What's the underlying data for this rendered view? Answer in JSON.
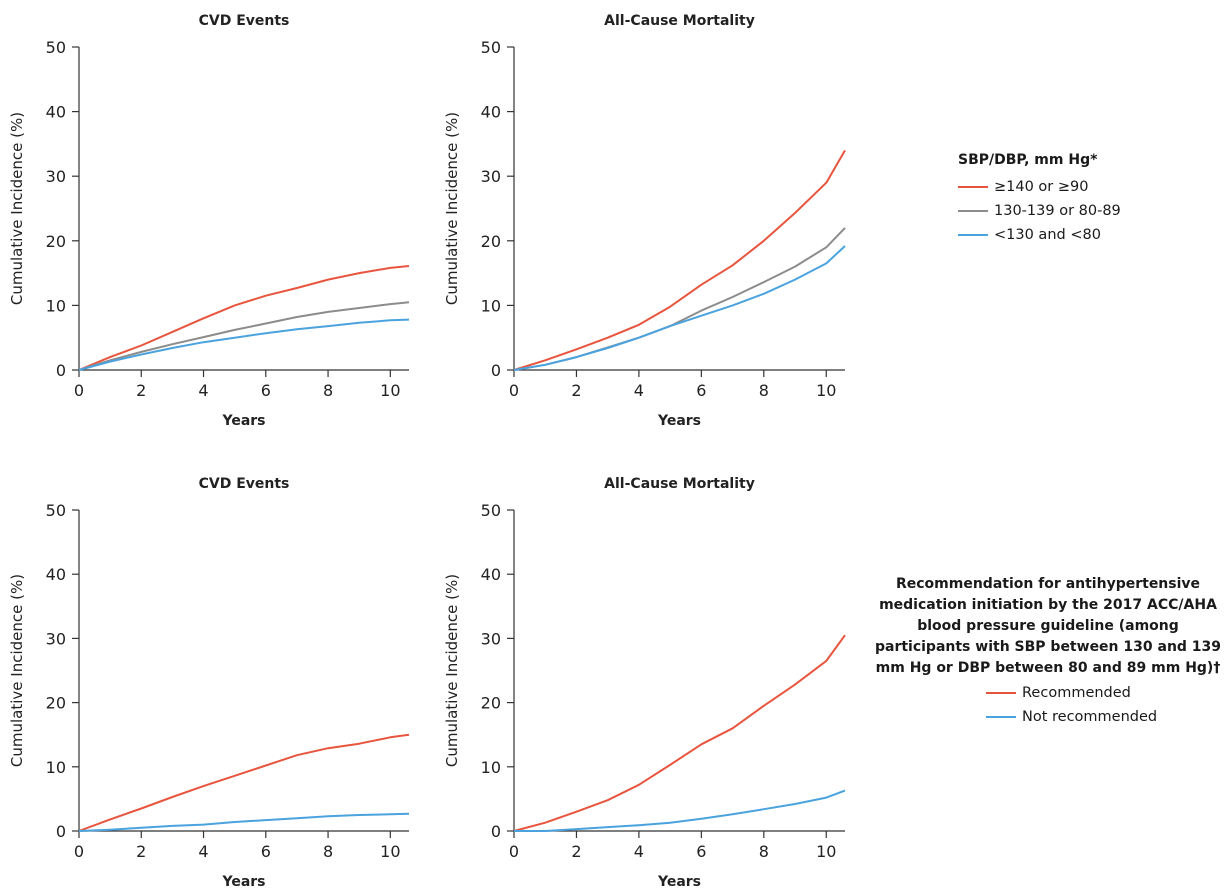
{
  "colors": {
    "red": "#e8553e",
    "gray": "#8c8c8c",
    "blue": "#4aa3df",
    "axis": "#333333"
  },
  "legends": {
    "top": {
      "title": "SBP/DBP, mm Hg*",
      "items": [
        {
          "label": "≥140 or ≥90",
          "color": "#e8553e"
        },
        {
          "label": "130-139 or 80-89",
          "color": "#8c8c8c"
        },
        {
          "label": "<130 and <80",
          "color": "#4aa3df"
        }
      ]
    },
    "bottom": {
      "title": "Recommendation for antihypertensive medication initiation by the 2017 ACC/AHA blood pressure guideline (among participants with SBP between 130 and 139 mm Hg or DBP between 80 and 89 mm Hg)†",
      "items": [
        {
          "label": "Recommended",
          "color": "#e8553e"
        },
        {
          "label": "Not recommended",
          "color": "#4aa3df"
        }
      ]
    }
  },
  "chart_data": [
    {
      "type": "line",
      "title": "CVD Events",
      "xlabel": "Years",
      "ylabel": "Cumulative Incidence (%)",
      "xlim": [
        0,
        10.6
      ],
      "ylim": [
        0,
        50
      ],
      "xticks": [
        0,
        2,
        4,
        6,
        8,
        10
      ],
      "yticks": [
        0,
        10,
        20,
        30,
        40,
        50
      ],
      "series": [
        {
          "name": "≥140 or ≥90",
          "color": "#e8553e",
          "x": [
            0,
            1,
            2,
            3,
            4,
            5,
            6,
            7,
            8,
            9,
            10,
            10.6
          ],
          "y": [
            0,
            2,
            3.8,
            5.9,
            8,
            10,
            11.5,
            12.7,
            14,
            15,
            15.8,
            16.1
          ]
        },
        {
          "name": "130-139 or 80-89",
          "color": "#8c8c8c",
          "x": [
            0,
            1,
            2,
            3,
            4,
            5,
            6,
            7,
            8,
            9,
            10,
            10.6
          ],
          "y": [
            0,
            1.5,
            2.8,
            4,
            5.1,
            6.2,
            7.2,
            8.2,
            9,
            9.6,
            10.2,
            10.5
          ]
        },
        {
          "name": "<130 and <80",
          "color": "#4aa3df",
          "x": [
            0,
            1,
            2,
            3,
            4,
            5,
            6,
            7,
            8,
            9,
            10,
            10.6
          ],
          "y": [
            0,
            1.3,
            2.4,
            3.4,
            4.3,
            5,
            5.7,
            6.3,
            6.8,
            7.3,
            7.7,
            7.8
          ]
        }
      ]
    },
    {
      "type": "line",
      "title": "All-Cause Mortality",
      "xlabel": "Years",
      "ylabel": "Cumulative Incidence (%)",
      "xlim": [
        0,
        10.6
      ],
      "ylim": [
        0,
        50
      ],
      "xticks": [
        0,
        2,
        4,
        6,
        8,
        10
      ],
      "yticks": [
        0,
        10,
        20,
        30,
        40,
        50
      ],
      "series": [
        {
          "name": "≥140 or ≥90",
          "color": "#e8553e",
          "x": [
            0,
            1,
            2,
            3,
            4,
            5,
            6,
            7,
            8,
            9,
            10,
            10.6
          ],
          "y": [
            0,
            1.5,
            3.2,
            5,
            7,
            9.8,
            13.2,
            16.2,
            20,
            24.3,
            29,
            34
          ]
        },
        {
          "name": "130-139 or 80-89",
          "color": "#8c8c8c",
          "x": [
            0,
            1,
            2,
            3,
            4,
            5,
            6,
            7,
            8,
            9,
            10,
            10.6
          ],
          "y": [
            0,
            0.8,
            2,
            3.5,
            5,
            6.8,
            9.2,
            11.3,
            13.6,
            16,
            19,
            22
          ]
        },
        {
          "name": "<130 and <80",
          "color": "#4aa3df",
          "x": [
            0,
            1,
            2,
            3,
            4,
            5,
            6,
            7,
            8,
            9,
            10,
            10.6
          ],
          "y": [
            0,
            0.8,
            2,
            3.4,
            5,
            6.8,
            8.4,
            10,
            11.8,
            14,
            16.5,
            19.2
          ]
        }
      ]
    },
    {
      "type": "line",
      "title": "CVD Events",
      "xlabel": "Years",
      "ylabel": "Cumulative Incidence (%)",
      "xlim": [
        0,
        10.6
      ],
      "ylim": [
        0,
        50
      ],
      "xticks": [
        0,
        2,
        4,
        6,
        8,
        10
      ],
      "yticks": [
        0,
        10,
        20,
        30,
        40,
        50
      ],
      "series": [
        {
          "name": "Recommended",
          "color": "#e8553e",
          "x": [
            0,
            1,
            2,
            3,
            4,
            5,
            6,
            7,
            8,
            9,
            10,
            10.6
          ],
          "y": [
            0,
            1.8,
            3.5,
            5.3,
            7,
            8.6,
            10.2,
            11.8,
            12.9,
            13.6,
            14.6,
            15
          ]
        },
        {
          "name": "Not recommended",
          "color": "#4aa3df",
          "x": [
            0,
            1,
            2,
            3,
            4,
            5,
            6,
            7,
            8,
            9,
            10,
            10.6
          ],
          "y": [
            0,
            0.2,
            0.5,
            0.8,
            1,
            1.4,
            1.7,
            2,
            2.3,
            2.5,
            2.6,
            2.7
          ]
        }
      ]
    },
    {
      "type": "line",
      "title": "All-Cause Mortality",
      "xlabel": "Years",
      "ylabel": "Cumulative Incidence (%)",
      "xlim": [
        0,
        10.6
      ],
      "ylim": [
        0,
        50
      ],
      "xticks": [
        0,
        2,
        4,
        6,
        8,
        10
      ],
      "yticks": [
        0,
        10,
        20,
        30,
        40,
        50
      ],
      "series": [
        {
          "name": "Recommended",
          "color": "#e8553e",
          "x": [
            0,
            1,
            2,
            3,
            4,
            5,
            6,
            7,
            8,
            9,
            10,
            10.6
          ],
          "y": [
            0,
            1.3,
            3,
            4.8,
            7.2,
            10.3,
            13.5,
            16,
            19.5,
            22.8,
            26.5,
            30.5
          ]
        },
        {
          "name": "Not recommended",
          "color": "#4aa3df",
          "x": [
            0,
            1,
            2,
            3,
            4,
            5,
            6,
            7,
            8,
            9,
            10,
            10.6
          ],
          "y": [
            0,
            0,
            0.3,
            0.6,
            0.9,
            1.3,
            1.9,
            2.6,
            3.4,
            4.2,
            5.2,
            6.3
          ]
        }
      ]
    }
  ]
}
